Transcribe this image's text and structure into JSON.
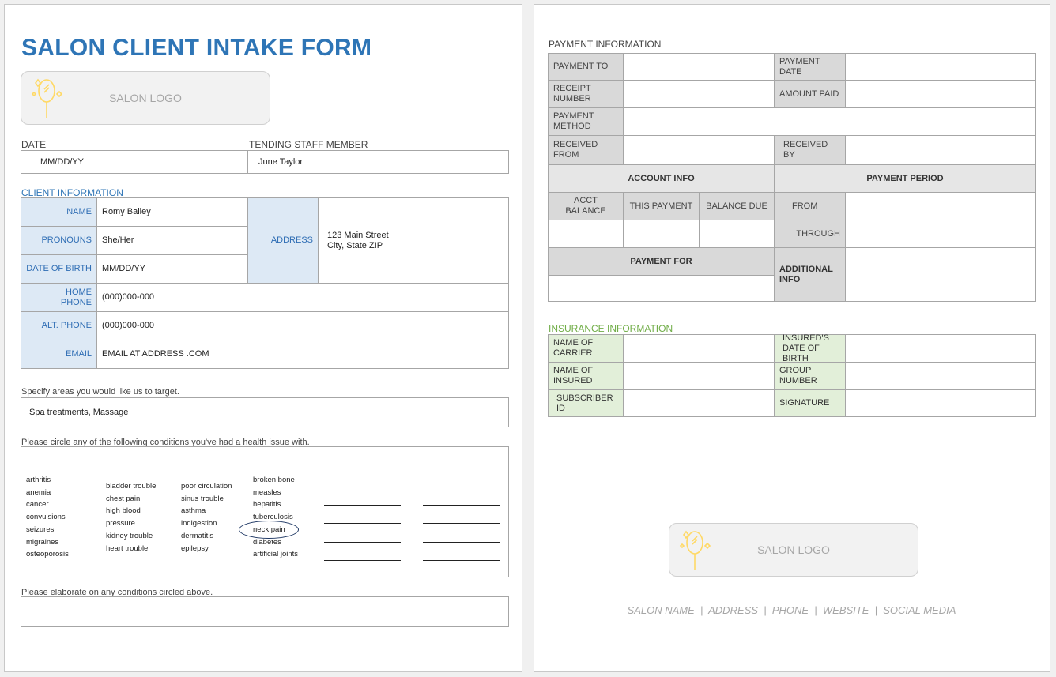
{
  "title": "SALON CLIENT INTAKE FORM",
  "logo_text": "SALON LOGO",
  "colors": {
    "title": "#2e75b6",
    "label_bg": "#dde9f5",
    "insurance_green": "#70ad47",
    "logo_icon": "#ffd966"
  },
  "date": {
    "label": "DATE",
    "value": "MM/DD/YY"
  },
  "staff": {
    "label": "TENDING STAFF MEMBER",
    "value": "June Taylor"
  },
  "client": {
    "heading": "CLIENT INFORMATION",
    "name": {
      "label": "NAME",
      "value": "Romy Bailey"
    },
    "pronouns": {
      "label": "PRONOUNS",
      "value": "She/Her"
    },
    "dob": {
      "label": "DATE OF BIRTH",
      "value": "MM/DD/YY"
    },
    "address": {
      "label": "ADDRESS",
      "line1": "123 Main Street",
      "line2": "City, State ZIP"
    },
    "home_phone": {
      "label": "HOME PHONE",
      "value": "(000)000-000"
    },
    "alt_phone": {
      "label": "ALT. PHONE",
      "value": "(000)000-000"
    },
    "email": {
      "label": "EMAIL",
      "value": "EMAIL AT ADDRESS .COM"
    }
  },
  "target": {
    "prompt": "Specify areas you would like us to target.",
    "value": "Spa treatments, Massage"
  },
  "conditions": {
    "prompt": "Please circle any of the following conditions you've had a health issue with.",
    "col1": [
      "arthritis",
      "anemia",
      "cancer",
      "convulsions",
      "seizures",
      "migraines",
      "osteoporosis"
    ],
    "col2": [
      "bladder trouble",
      "chest pain",
      "high blood",
      "pressure",
      "kidney trouble",
      "heart trouble"
    ],
    "col3": [
      "poor circulation",
      "sinus trouble",
      "asthma",
      "indigestion",
      "dermatitis",
      "epilepsy"
    ],
    "col4": [
      "broken bone",
      "measles",
      "hepatitis",
      "tuberculosis",
      "neck pain",
      "diabetes",
      "artificial joints"
    ],
    "circled": "neck pain"
  },
  "elaborate": {
    "prompt": "Please elaborate on any conditions circled above.",
    "value": ""
  },
  "payment": {
    "heading": "PAYMENT INFORMATION",
    "payment_to": "PAYMENT TO",
    "payment_date": "PAYMENT DATE",
    "receipt_number": "RECEIPT NUMBER",
    "amount_paid": "AMOUNT PAID",
    "payment_method": "PAYMENT METHOD",
    "received_from": "RECEIVED FROM",
    "received_by": "RECEIVED BY",
    "account_info": "ACCOUNT INFO",
    "payment_period": "PAYMENT PERIOD",
    "acct_balance": "ACCT BALANCE",
    "this_payment": "THIS PAYMENT",
    "balance_due": "BALANCE DUE",
    "from": "FROM",
    "through": "THROUGH",
    "payment_for": "PAYMENT FOR",
    "additional_info": "ADDITIONAL INFO"
  },
  "insurance": {
    "heading": "INSURANCE INFORMATION",
    "carrier": "NAME OF CARRIER",
    "insured_dob": "INSURED'S DATE OF BIRTH",
    "insured_name": "NAME OF INSURED",
    "group_number": "GROUP NUMBER",
    "subscriber_id": "SUBSCRIBER ID",
    "signature": "SIGNATURE"
  },
  "footer": [
    "SALON NAME",
    "ADDRESS",
    "PHONE",
    "WEBSITE",
    "SOCIAL MEDIA"
  ]
}
